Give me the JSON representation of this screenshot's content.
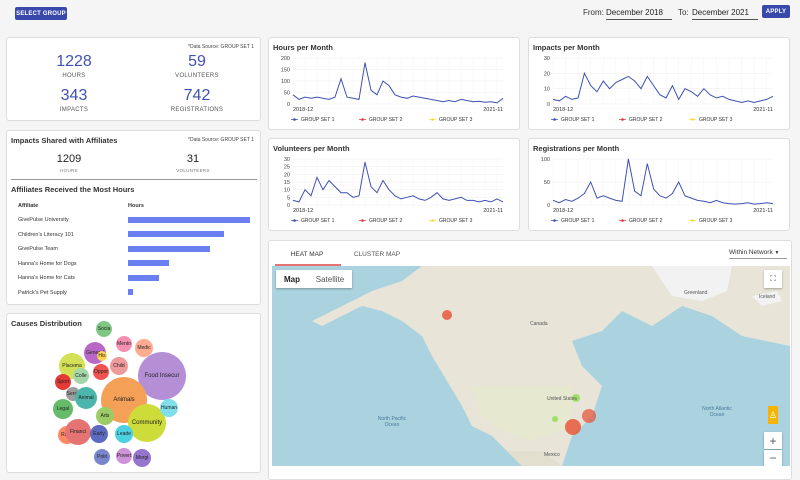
{
  "toolbar": {
    "select_group_label": "SELECT GROUP",
    "from_label": "From:",
    "from_value": "December 2018",
    "to_label": "To:",
    "to_value": "December 2021",
    "apply_label": "APPLY"
  },
  "summary": {
    "data_source": "*Data Source: GROUP SET 1",
    "hours": {
      "value": "1228",
      "label": "HOURS"
    },
    "volunteers": {
      "value": "59",
      "label": "VOLUNTEERS"
    },
    "impacts": {
      "value": "343",
      "label": "IMPACTS"
    },
    "registrations": {
      "value": "742",
      "label": "REGISTRATIONS"
    }
  },
  "affiliates": {
    "title": "Impacts Shared with Affiliates",
    "data_source": "*Data Source: GROUP SET 1",
    "hours": {
      "value": "1209",
      "label": "HOURS"
    },
    "volunteers": {
      "value": "31",
      "label": "VOLUNTEERS"
    },
    "most_hours_title": "Affiliates Received the Most Hours",
    "col_affiliate": "Affiliate",
    "col_hours": "Hours",
    "rows": [
      {
        "name": "GivePulse University",
        "hours": 100
      },
      {
        "name": "Children's Literacy 101",
        "hours": 79
      },
      {
        "name": "GivePulse Team",
        "hours": 67
      },
      {
        "name": "Hanna's Home for Dogs",
        "hours": 34
      },
      {
        "name": "Hanna's Home for Cats",
        "hours": 25
      },
      {
        "name": "Patrick's Pet Supply",
        "hours": 4
      }
    ]
  },
  "causes": {
    "title": "Causes Distribution",
    "bubbles": [
      {
        "label": "Food Insecur",
        "color": "#b48fd6"
      },
      {
        "label": "Animals",
        "color": "#f4a056"
      },
      {
        "label": "Community",
        "color": "#cddc39"
      },
      {
        "label": "Placema",
        "color": "#d4e157"
      },
      {
        "label": "General",
        "color": "#ba68c8"
      },
      {
        "label": "Socia",
        "color": "#81c784"
      },
      {
        "label": "Mento",
        "color": "#f48fb1"
      },
      {
        "label": "Medic",
        "color": "#ffab91"
      },
      {
        "label": "His",
        "color": "#ffd54f"
      },
      {
        "label": "Child",
        "color": "#ef9a9a"
      },
      {
        "label": "Oppor",
        "color": "#ef5350"
      },
      {
        "label": "Colle",
        "color": "#a5d6a7"
      },
      {
        "label": "Sport",
        "color": "#e53935"
      },
      {
        "label": "Senio",
        "color": "#9e9e9e"
      },
      {
        "label": "Animal",
        "color": "#4db6ac"
      },
      {
        "label": "Legal",
        "color": "#66bb6a"
      },
      {
        "label": "Arts",
        "color": "#9ccc65"
      },
      {
        "label": "Human",
        "color": "#80deea"
      },
      {
        "label": "Race",
        "color": "#ff8a65"
      },
      {
        "label": "Financi",
        "color": "#e57373"
      },
      {
        "label": "Early",
        "color": "#5c6bc0"
      },
      {
        "label": "Leade",
        "color": "#4dd0e1"
      },
      {
        "label": "Polit",
        "color": "#7986cb"
      },
      {
        "label": "Povert",
        "color": "#ce93d8"
      },
      {
        "label": "Morgi",
        "color": "#9575cd"
      }
    ]
  },
  "legend": [
    "GROUP SET 1",
    "GROUP SET 2",
    "GROUP SET 3"
  ],
  "legend_colors": [
    "#3f51b5",
    "#e53935",
    "#fdd835"
  ],
  "charts": {
    "hours": {
      "title": "Hours per Month",
      "x_start": "2018-12",
      "x_end": "2021-11",
      "ticks": [
        "200",
        "150",
        "100",
        "50",
        "0"
      ]
    },
    "impacts": {
      "title": "Impacts per Month",
      "x_start": "2018-12",
      "x_end": "2021-11",
      "ticks": [
        "30",
        "20",
        "10",
        "0"
      ]
    },
    "volunteers": {
      "title": "Volunteers per Month",
      "x_start": "2018-12",
      "x_end": "2021-11",
      "ticks": [
        "30",
        "25",
        "20",
        "15",
        "10",
        "5",
        "0"
      ]
    },
    "registrations": {
      "title": "Registrations per Month",
      "x_start": "2018-12",
      "x_end": "2021-11",
      "ticks": [
        "100",
        "50",
        "0"
      ]
    }
  },
  "chart_data": [
    {
      "type": "line",
      "title": "Hours per Month",
      "ylim": [
        0,
        200
      ],
      "series": [
        {
          "name": "GROUP SET 1",
          "values": [
            40,
            20,
            30,
            25,
            30,
            25,
            20,
            30,
            110,
            30,
            25,
            20,
            180,
            60,
            40,
            100,
            80,
            40,
            30,
            25,
            35,
            30,
            25,
            20,
            15,
            10,
            15,
            10,
            20,
            15,
            10,
            12,
            8,
            10,
            5,
            25
          ]
        }
      ]
    },
    {
      "type": "line",
      "title": "Impacts per Month",
      "ylim": [
        0,
        30
      ],
      "series": [
        {
          "name": "GROUP SET 1",
          "values": [
            3,
            2,
            5,
            3,
            4,
            20,
            12,
            8,
            15,
            10,
            14,
            16,
            18,
            15,
            10,
            18,
            12,
            6,
            4,
            12,
            3,
            10,
            8,
            5,
            10,
            6,
            4,
            5,
            3,
            2,
            1,
            2,
            1,
            2,
            3,
            5
          ]
        }
      ]
    },
    {
      "type": "line",
      "title": "Volunteers per Month",
      "ylim": [
        0,
        30
      ],
      "series": [
        {
          "name": "GROUP SET 1",
          "values": [
            3,
            2,
            10,
            6,
            18,
            10,
            16,
            12,
            8,
            8,
            5,
            6,
            28,
            12,
            8,
            16,
            10,
            6,
            4,
            5,
            6,
            4,
            3,
            5,
            8,
            4,
            3,
            4,
            5,
            3,
            3,
            2,
            3,
            2,
            4,
            2
          ]
        }
      ]
    },
    {
      "type": "line",
      "title": "Registrations per Month",
      "ylim": [
        0,
        100
      ],
      "series": [
        {
          "name": "GROUP SET 1",
          "values": [
            10,
            5,
            12,
            8,
            15,
            25,
            50,
            15,
            20,
            15,
            10,
            8,
            100,
            30,
            20,
            90,
            35,
            20,
            15,
            25,
            50,
            20,
            15,
            10,
            8,
            5,
            10,
            5,
            3,
            2,
            3,
            5,
            2,
            3,
            5,
            3
          ]
        }
      ]
    }
  ],
  "map": {
    "tab_heat": "HEAT MAP",
    "tab_cluster": "CLUSTER MAP",
    "network_select": "Within Network",
    "map_btn": "Map",
    "satellite_btn": "Satellite",
    "labels": [
      {
        "text": "Greenland"
      },
      {
        "text": "Iceland"
      },
      {
        "text": "Canada"
      },
      {
        "text": "North Pacific Ocean"
      },
      {
        "text": "North Atlantic Ocean"
      },
      {
        "text": "United States"
      },
      {
        "text": "Mexico"
      }
    ]
  }
}
